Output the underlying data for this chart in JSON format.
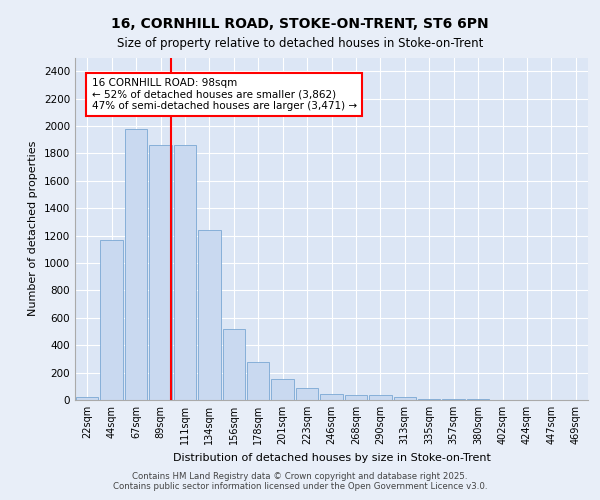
{
  "title_line1": "16, CORNHILL ROAD, STOKE-ON-TRENT, ST6 6PN",
  "title_line2": "Size of property relative to detached houses in Stoke-on-Trent",
  "xlabel": "Distribution of detached houses by size in Stoke-on-Trent",
  "ylabel": "Number of detached properties",
  "bins": [
    "22sqm",
    "44sqm",
    "67sqm",
    "89sqm",
    "111sqm",
    "134sqm",
    "156sqm",
    "178sqm",
    "201sqm",
    "223sqm",
    "246sqm",
    "268sqm",
    "290sqm",
    "313sqm",
    "335sqm",
    "357sqm",
    "380sqm",
    "402sqm",
    "424sqm",
    "447sqm",
    "469sqm"
  ],
  "bar_values": [
    25,
    1170,
    1980,
    1860,
    1860,
    1240,
    520,
    275,
    155,
    90,
    45,
    40,
    40,
    20,
    8,
    4,
    4,
    2,
    2,
    2,
    2
  ],
  "bar_color": "#c9d9f0",
  "bar_edge_color": "#7aa8d4",
  "red_line_x": 3.45,
  "annotation_line1": "16 CORNHILL ROAD: 98sqm",
  "annotation_line2": "← 52% of detached houses are smaller (3,862)",
  "annotation_line3": "47% of semi-detached houses are larger (3,471) →",
  "ylim": [
    0,
    2500
  ],
  "yticks": [
    0,
    200,
    400,
    600,
    800,
    1000,
    1200,
    1400,
    1600,
    1800,
    2000,
    2200,
    2400
  ],
  "bg_color": "#e8eef8",
  "plot_bg_color": "#dce6f5",
  "grid_color": "#ffffff",
  "footer_line1": "Contains HM Land Registry data © Crown copyright and database right 2025.",
  "footer_line2": "Contains public sector information licensed under the Open Government Licence v3.0."
}
